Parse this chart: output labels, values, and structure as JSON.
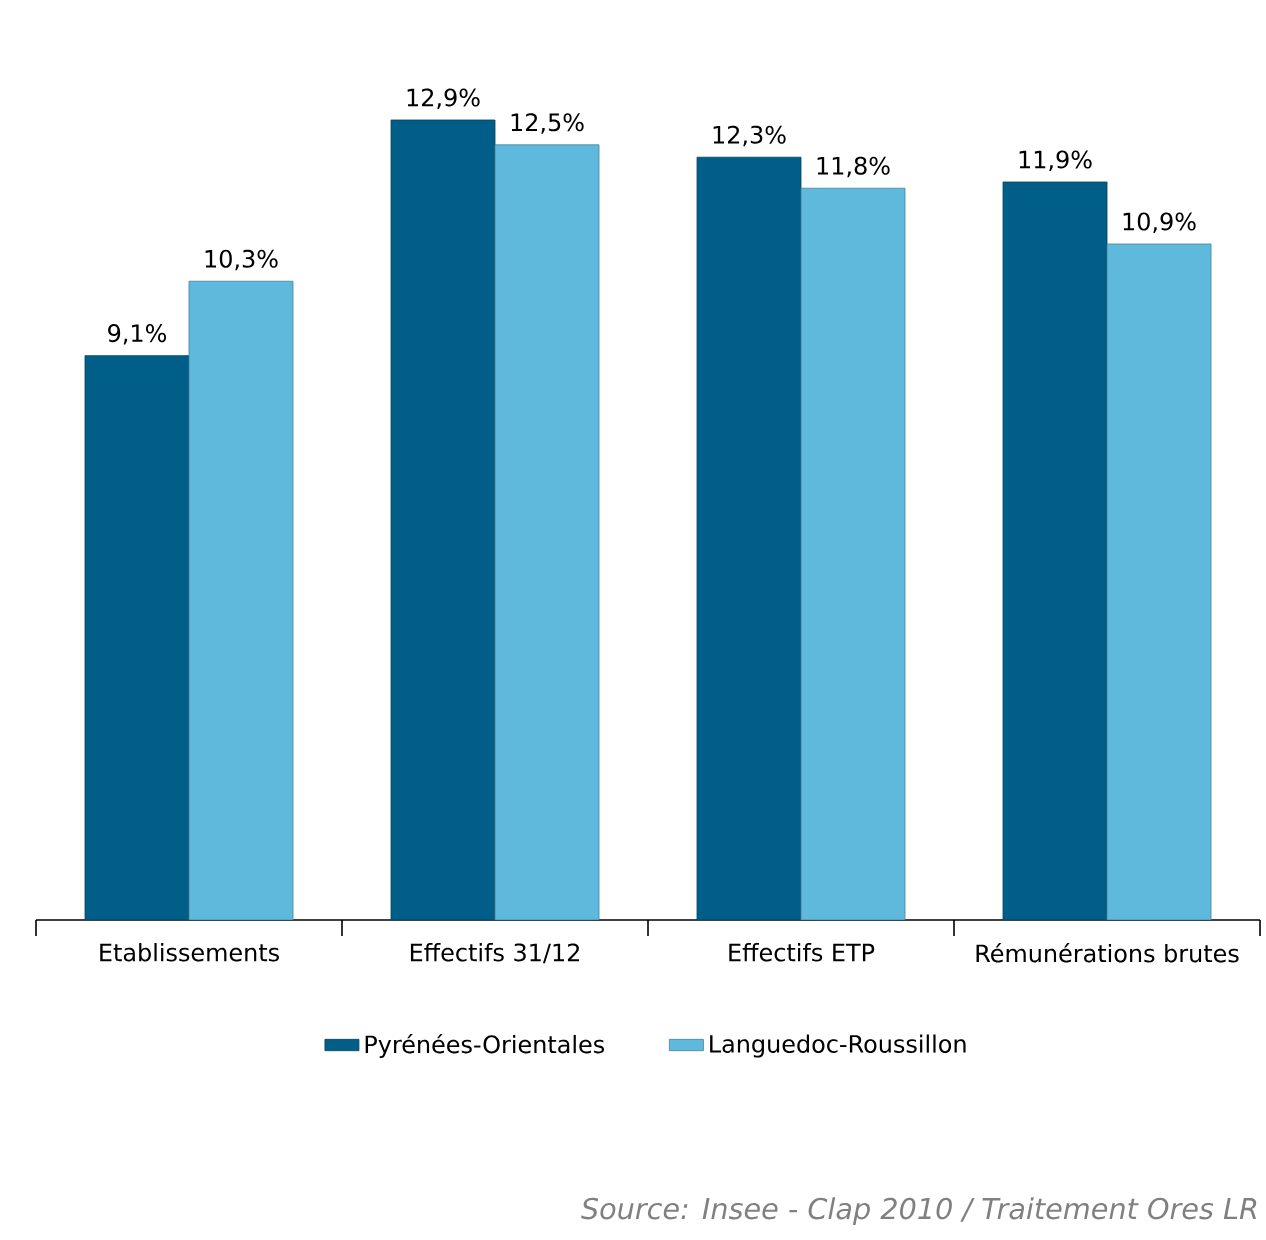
{
  "chart_data": {
    "type": "bar",
    "categories": [
      "Etablissements",
      "Effectifs 31/12",
      "Effectifs ETP",
      "Rémunérations brutes"
    ],
    "series": [
      {
        "name": "Pyrénées-Orientales",
        "color": "#005e88",
        "values": [
          9.1,
          12.9,
          12.3,
          11.9
        ],
        "value_labels": [
          "9,1%",
          "12,9%",
          "12,3%",
          "11,9%"
        ]
      },
      {
        "name": "Languedoc-Roussillon",
        "color": "#5fb9dd",
        "values": [
          10.3,
          12.5,
          11.8,
          10.9
        ],
        "value_labels": [
          "10,3%",
          "12,5%",
          "11,8%",
          "10,9%"
        ]
      }
    ],
    "legend": "bottom",
    "grid": false,
    "annotations": [
      "Source: Insee - Clap 2010 / Traitement Ores LR"
    ]
  }
}
